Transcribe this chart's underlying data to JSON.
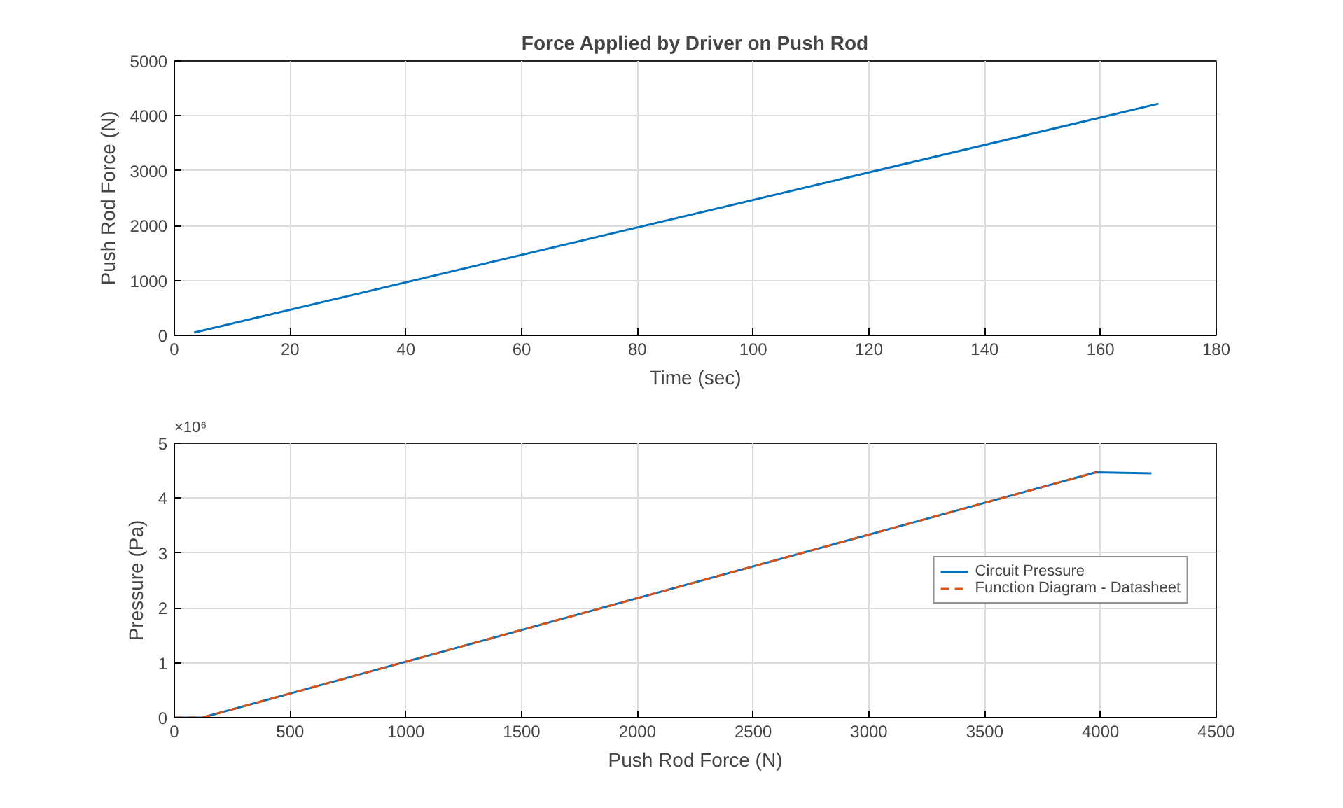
{
  "chart_data": [
    {
      "type": "line",
      "title": "Force Applied by Driver on Push Rod",
      "xlabel": "Time (sec)",
      "ylabel": "Push Rod Force (N)",
      "x": [
        3.4,
        170
      ],
      "series": [
        {
          "color": "#0072bd",
          "values": [
            50,
            4220
          ]
        }
      ],
      "xlim": [
        0,
        180
      ],
      "xticks": [
        0,
        20,
        40,
        60,
        80,
        100,
        120,
        140,
        160,
        180
      ],
      "ylim": [
        0,
        5000
      ],
      "yticks": [
        0,
        1000,
        2000,
        3000,
        4000,
        5000
      ],
      "grid": true,
      "legend": false
    },
    {
      "type": "line",
      "xlabel": "Push Rod Force (N)",
      "ylabel": "Pressure (Pa)",
      "annotations": [
        "×10⁶"
      ],
      "series": [
        {
          "name": "Circuit Pressure",
          "color": "#0072bd",
          "x": [
            0,
            120,
            3980,
            4220
          ],
          "values": [
            0,
            0,
            4.47,
            4.45
          ]
        },
        {
          "name": "Function Diagram - Datasheet",
          "color": "#d95319",
          "line_style": "dashed",
          "x": [
            0,
            120,
            3980
          ],
          "values": [
            0,
            0,
            4.47
          ]
        }
      ],
      "xlim": [
        0,
        4500
      ],
      "xticks": [
        0,
        500,
        1000,
        1500,
        2000,
        2500,
        3000,
        3500,
        4000,
        4500
      ],
      "ylim": [
        0,
        5
      ],
      "yticks": [
        0,
        1,
        2,
        3,
        4,
        5
      ],
      "grid": true,
      "legend": "right"
    }
  ]
}
